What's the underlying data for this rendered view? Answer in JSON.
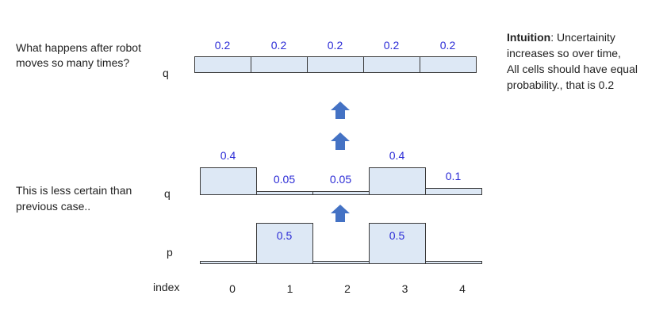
{
  "question": [
    "What happens after robot",
    "moves so many times?"
  ],
  "less_certain": [
    "This is less certain than",
    "previous case.."
  ],
  "intuition": {
    "label": "Intuition",
    "lines": [
      ": Uncertainity",
      "increases so over time,",
      "All cells should have equal",
      "probability., that is 0.2"
    ]
  },
  "rows": {
    "q_final": {
      "label": "q",
      "values": [
        "0.2",
        "0.2",
        "0.2",
        "0.2",
        "0.2"
      ]
    },
    "q": {
      "label": "q",
      "values": [
        "0.4",
        "0.05",
        "0.05",
        "0.4",
        "0.1"
      ],
      "numeric": [
        0.4,
        0.05,
        0.05,
        0.4,
        0.1
      ]
    },
    "p": {
      "label": "p",
      "values": [
        "",
        "0.5",
        "",
        "0.5",
        ""
      ],
      "numeric": [
        0,
        0.5,
        0,
        0.5,
        0
      ]
    }
  },
  "index": {
    "label": "index",
    "values": [
      "0",
      "1",
      "2",
      "3",
      "4"
    ]
  },
  "colors": {
    "cell_fill": "#dde8f5",
    "value_text": "#2b2bd6",
    "arrow": "#4472c4"
  },
  "icons": {
    "arrow": "up-arrow-icon"
  }
}
